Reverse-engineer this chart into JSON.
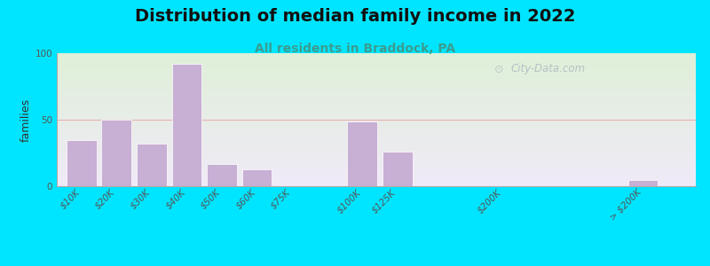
{
  "title": "Distribution of median family income in 2022",
  "subtitle": "All residents in Braddock, PA",
  "ylabel": "families",
  "background_outer": "#00e5ff",
  "background_inner_top": "#dff0d8",
  "background_inner_bottom": "#f0eaf8",
  "bar_color": "#c8afd4",
  "bar_edge_color": "#ffffff",
  "categories": [
    "$10K",
    "$20K",
    "$30K",
    "$40K",
    "$50K",
    "$60K",
    "$75K",
    "$100K",
    "$125K",
    "$200K",
    "> $200K"
  ],
  "values": [
    35,
    50,
    32,
    92,
    17,
    13,
    0,
    49,
    26,
    0,
    5
  ],
  "x_positions": [
    0,
    1,
    2,
    3,
    4,
    5,
    6,
    8,
    9,
    12,
    16
  ],
  "ylim": [
    0,
    100
  ],
  "yticks": [
    0,
    50,
    100
  ],
  "title_fontsize": 14,
  "subtitle_fontsize": 10,
  "ylabel_fontsize": 9,
  "tick_fontsize": 7.5,
  "watermark_text": "City-Data.com",
  "watermark_color": "#b0b8c0",
  "grid_color": "#e8b0b0",
  "title_color": "#111111",
  "subtitle_color": "#3a9d8f"
}
